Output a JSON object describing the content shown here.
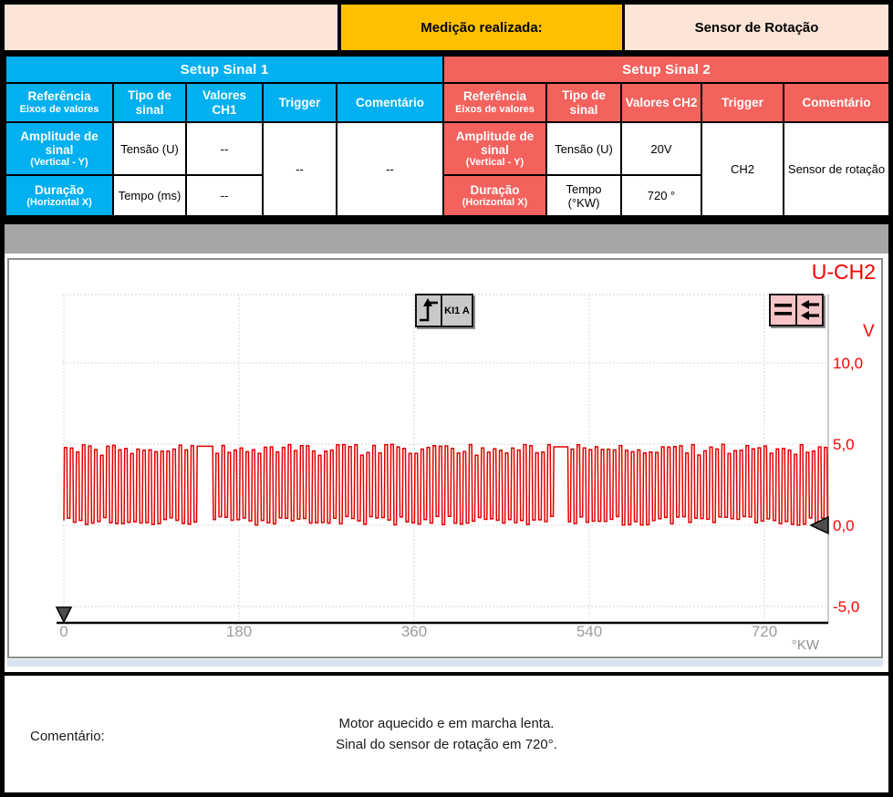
{
  "header": {
    "measurement_label": "Medição realizada:",
    "measurement_value": "Sensor de Rotação"
  },
  "tables": [
    {
      "title": "Setup Sinal 1",
      "headers": {
        "ref_main": "Referência",
        "ref_sub": "Eixos de valores",
        "type": "Tipo de sinal",
        "values": "Valores CH1",
        "trigger": "Trigger",
        "comment": "Comentário"
      },
      "rows": [
        {
          "label_main": "Amplitude de sinal",
          "label_sub": "(Vertical - Y)",
          "type": "Tensão (U)",
          "value": "--"
        },
        {
          "label_main": "Duração",
          "label_sub": "(Horizontal X)",
          "type": "Tempo (ms)",
          "value": "--"
        }
      ],
      "trigger_value": "--",
      "comment_value": "--"
    },
    {
      "title": "Setup Sinal 2",
      "headers": {
        "ref_main": "Referência",
        "ref_sub": "Eixos de valores",
        "type": "Tipo de sinal",
        "values": "Valores CH2",
        "trigger": "Trigger",
        "comment": "Comentário"
      },
      "rows": [
        {
          "label_main": "Amplitude de sinal",
          "label_sub": "(Vertical - Y)",
          "type": "Tensão (U)",
          "value": "20V"
        },
        {
          "label_main": "Duração",
          "label_sub": "(Horizontal X)",
          "type": "Tempo (°KW)",
          "value": "720 °"
        }
      ],
      "trigger_value": "CH2",
      "comment_value": "Sensor de rotação"
    }
  ],
  "chart": {
    "title": "U-CH2",
    "trigger_icon_label": "KI1 A"
  },
  "chart_data": {
    "type": "line",
    "title": "U-CH2",
    "y_unit": "V",
    "x_unit": "°KW",
    "x_ticks": [
      0,
      180,
      360,
      540,
      720
    ],
    "y_ticks": [
      10,
      5,
      0,
      -5
    ],
    "x_range_deg": [
      0,
      785
    ],
    "y_range_v": [
      -6.2,
      14.3
    ],
    "grid": true,
    "legend_position": "none",
    "markers": {
      "time_marker_deg": 0,
      "zero_level_marker_v": 0
    },
    "series": [
      {
        "name": "U-CH2",
        "color": "#e10000",
        "description": "Crankshaft rotation sensor square-wave over two revolutions (720°); toothed-wheel signal 0–5 V with one reference gap (held high) per 360° revolution",
        "high_v": 5.0,
        "low_v": 0.0,
        "tooth_period_deg": 6.2,
        "duty_cycle": 0.5,
        "reference_gaps_deg": [
          138,
          503
        ],
        "gap_length_deg": 15
      }
    ]
  },
  "comment": {
    "label": "Comentário:",
    "lines": [
      "Motor aquecido e em marcha lenta.",
      "Sinal do sensor de rotação em 720°."
    ]
  },
  "colors": {
    "signal1_accent": "#00b0f0",
    "signal2_accent": "#f4625d",
    "measurement_highlight": "#ffc000",
    "header_peach": "#fce4d6",
    "separator_gray": "#a6a6a6",
    "signal_trace": "#e10000",
    "axis_label_red": "#ff0000",
    "tick_gray": "#9c9c9c",
    "pan_icon_pink": "#f6c4c6"
  }
}
